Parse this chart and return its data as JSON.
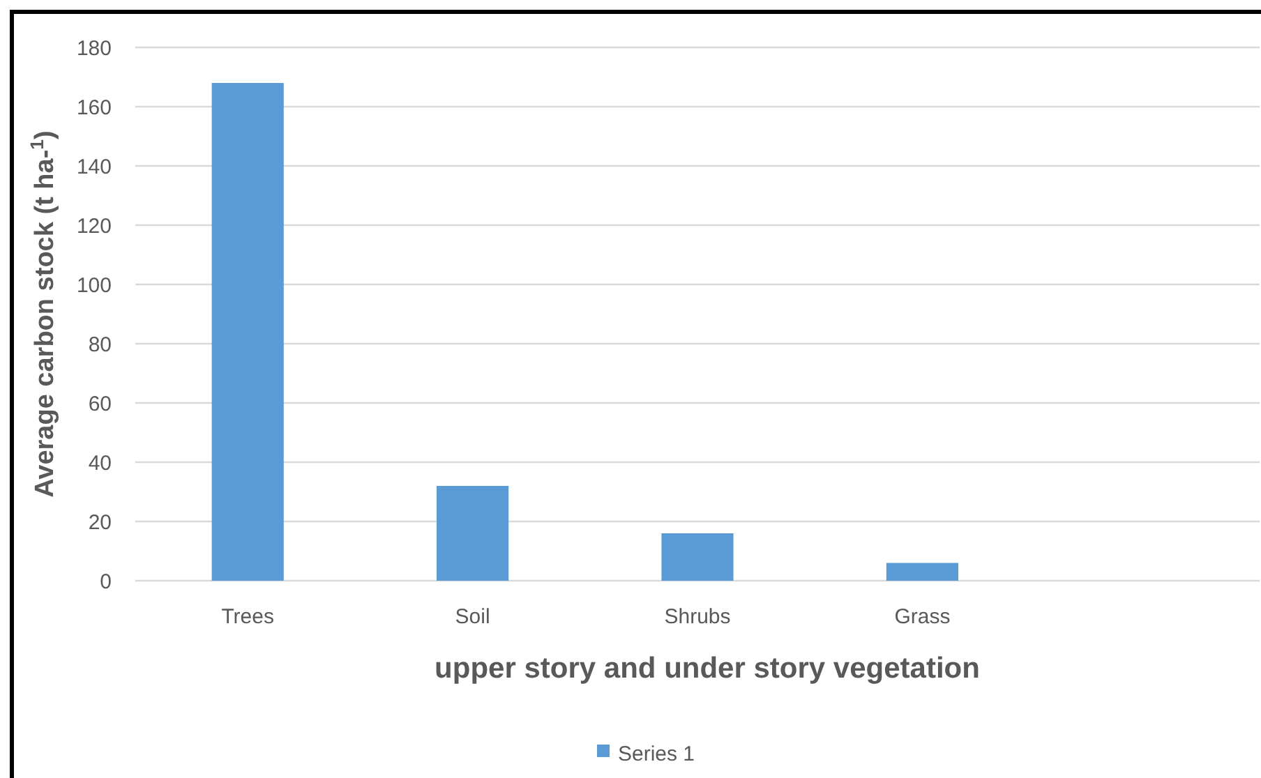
{
  "chart_data": {
    "type": "bar",
    "xlabel": "upper story and under story vegetation",
    "ylabel": "Average carbon stock (t ha-$^{1}$)",
    "categories": [
      "Trees",
      "Soil",
      "Shrubs",
      "Grass",
      null
    ],
    "series": [
      {
        "name": "Series 1",
        "color": "#5b9bd5",
        "values": [
          168,
          32,
          16,
          6,
          null
        ]
      }
    ],
    "ylim": [
      0,
      180
    ],
    "yticks": [
      0,
      20,
      40,
      60,
      80,
      100,
      120,
      140,
      160,
      180
    ],
    "grid": "y",
    "legend": "bottom"
  }
}
